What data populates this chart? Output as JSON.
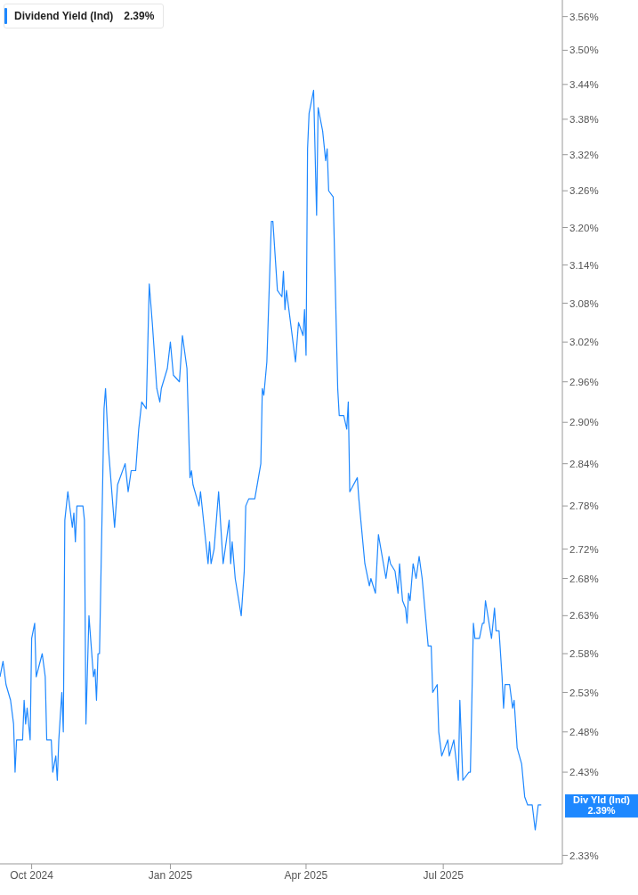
{
  "chart_data": {
    "type": "line",
    "x": [
      "2024-09-10",
      "2024-09-12",
      "2024-09-14",
      "2024-09-17",
      "2024-09-19",
      "2024-09-20",
      "2024-09-21",
      "2024-09-24",
      "2024-09-25",
      "2024-09-26",
      "2024-09-27",
      "2024-09-28",
      "2024-09-30",
      "2024-10-01",
      "2024-10-03",
      "2024-10-04",
      "2024-10-08",
      "2024-10-10",
      "2024-10-11",
      "2024-10-14",
      "2024-10-15",
      "2024-10-17",
      "2024-10-18",
      "2024-10-19",
      "2024-10-21",
      "2024-10-22",
      "2024-10-23",
      "2024-10-25",
      "2024-10-28",
      "2024-10-29",
      "2024-10-30",
      "2024-10-31",
      "2024-11-04",
      "2024-11-05",
      "2024-11-06",
      "2024-11-08",
      "2024-11-11",
      "2024-11-12",
      "2024-11-13",
      "2024-11-14",
      "2024-11-15",
      "2024-11-18",
      "2024-11-19",
      "2024-11-21",
      "2024-11-25",
      "2024-11-27",
      "2024-12-02",
      "2024-12-04",
      "2024-12-06",
      "2024-12-09",
      "2024-12-11",
      "2024-12-13",
      "2024-12-16",
      "2024-12-18",
      "2024-12-20",
      "2024-12-23",
      "2024-12-25",
      "2024-12-26",
      "2024-12-30",
      "2025-01-01",
      "2025-01-03",
      "2025-01-07",
      "2025-01-09",
      "2025-01-12",
      "2025-01-14",
      "2025-01-15",
      "2025-01-16",
      "2025-01-20",
      "2025-01-21",
      "2025-01-26",
      "2025-01-27",
      "2025-01-28",
      "2025-01-30",
      "2025-02-02",
      "2025-02-05",
      "2025-02-09",
      "2025-02-10",
      "2025-02-11",
      "2025-02-13",
      "2025-02-17",
      "2025-02-19",
      "2025-02-20",
      "2025-02-22",
      "2025-02-26",
      "2025-03-02",
      "2025-03-03",
      "2025-03-04",
      "2025-03-06",
      "2025-03-09",
      "2025-03-10",
      "2025-03-13",
      "2025-03-16",
      "2025-03-17",
      "2025-03-18",
      "2025-03-19",
      "2025-03-25",
      "2025-03-27",
      "2025-03-30",
      "2025-03-31",
      "2025-04-01",
      "2025-04-02",
      "2025-04-03",
      "2025-04-06",
      "2025-04-08",
      "2025-04-09",
      "2025-04-12",
      "2025-04-14",
      "2025-04-15",
      "2025-04-16",
      "2025-04-19",
      "2025-04-22",
      "2025-04-23",
      "2025-04-26",
      "2025-04-28",
      "2025-04-29",
      "2025-04-30",
      "2025-05-05",
      "2025-05-06",
      "2025-05-10",
      "2025-05-13",
      "2025-05-14",
      "2025-05-17",
      "2025-05-19",
      "2025-05-24",
      "2025-05-26",
      "2025-05-27",
      "2025-05-30",
      "2025-06-01",
      "2025-06-02",
      "2025-06-04",
      "2025-06-06",
      "2025-06-07",
      "2025-06-08",
      "2025-06-09",
      "2025-06-11",
      "2025-06-13",
      "2025-06-15",
      "2025-06-17",
      "2025-06-21",
      "2025-06-23",
      "2025-06-24",
      "2025-06-27",
      "2025-06-28",
      "2025-06-30",
      "2025-07-04",
      "2025-07-05",
      "2025-07-08",
      "2025-07-11",
      "2025-07-12",
      "2025-07-14",
      "2025-07-18",
      "2025-07-19",
      "2025-07-21",
      "2025-07-22",
      "2025-07-25",
      "2025-07-27",
      "2025-07-28",
      "2025-07-29",
      "2025-08-02",
      "2025-08-04",
      "2025-08-05",
      "2025-08-07",
      "2025-08-09",
      "2025-08-10",
      "2025-08-11",
      "2025-08-14",
      "2025-08-16",
      "2025-08-17",
      "2025-08-19",
      "2025-08-22",
      "2025-08-24",
      "2025-08-26",
      "2025-08-29",
      "2025-08-31",
      "2025-09-02",
      "2025-09-04"
    ],
    "series": [
      {
        "name": "Dividend Yield (Ind)",
        "color": "#1e88ff",
        "values": [
          2.55,
          2.57,
          2.54,
          2.52,
          2.49,
          2.43,
          2.47,
          2.47,
          2.47,
          2.52,
          2.49,
          2.51,
          2.47,
          2.6,
          2.62,
          2.55,
          2.58,
          2.55,
          2.47,
          2.47,
          2.43,
          2.45,
          2.42,
          2.47,
          2.53,
          2.48,
          2.76,
          2.8,
          2.75,
          2.77,
          2.73,
          2.78,
          2.78,
          2.76,
          2.49,
          2.63,
          2.55,
          2.56,
          2.52,
          2.58,
          2.58,
          2.92,
          2.95,
          2.86,
          2.75,
          2.81,
          2.84,
          2.8,
          2.83,
          2.83,
          2.89,
          2.93,
          2.92,
          3.11,
          3.05,
          2.95,
          2.93,
          2.95,
          2.98,
          3.02,
          2.97,
          2.96,
          3.03,
          2.98,
          2.82,
          2.83,
          2.81,
          2.78,
          2.8,
          2.7,
          2.73,
          2.7,
          2.72,
          2.8,
          2.7,
          2.76,
          2.7,
          2.73,
          2.68,
          2.63,
          2.69,
          2.78,
          2.79,
          2.79,
          2.84,
          2.95,
          2.94,
          2.99,
          3.21,
          3.21,
          3.1,
          3.09,
          3.13,
          3.07,
          3.1,
          2.99,
          3.05,
          3.03,
          3.07,
          3.0,
          3.33,
          3.39,
          3.43,
          3.22,
          3.4,
          3.36,
          3.31,
          3.33,
          3.26,
          3.25,
          2.95,
          2.91,
          2.91,
          2.89,
          2.93,
          2.8,
          2.82,
          2.79,
          2.7,
          2.67,
          2.68,
          2.66,
          2.74,
          2.68,
          2.71,
          2.7,
          2.69,
          2.66,
          2.7,
          2.65,
          2.64,
          2.62,
          2.66,
          2.65,
          2.7,
          2.68,
          2.71,
          2.68,
          2.59,
          2.59,
          2.53,
          2.54,
          2.48,
          2.45,
          2.47,
          2.45,
          2.47,
          2.42,
          2.52,
          2.42,
          2.43,
          2.43,
          2.62,
          2.6,
          2.6,
          2.62,
          2.62,
          2.65,
          2.6,
          2.64,
          2.61,
          2.61,
          2.55,
          2.51,
          2.54,
          2.54,
          2.51,
          2.52,
          2.46,
          2.44,
          2.4,
          2.39,
          2.39,
          2.36,
          2.39,
          2.39
        ]
      }
    ],
    "xlim": [
      "2024-09-10",
      "2025-09-18"
    ],
    "xticks": [
      {
        "value": "2024-10-01",
        "label": "Oct 2024"
      },
      {
        "value": "2025-01-01",
        "label": "Jan 2025"
      },
      {
        "value": "2025-04-01",
        "label": "Apr 2025"
      },
      {
        "value": "2025-07-01",
        "label": "Jul 2025"
      }
    ],
    "ylim": [
      2.32,
      3.59
    ],
    "yticks": [
      {
        "value": 2.33,
        "label": "2.33%"
      },
      {
        "value": 2.43,
        "label": "2.43%"
      },
      {
        "value": 2.48,
        "label": "2.48%"
      },
      {
        "value": 2.53,
        "label": "2.53%"
      },
      {
        "value": 2.58,
        "label": "2.58%"
      },
      {
        "value": 2.63,
        "label": "2.63%"
      },
      {
        "value": 2.68,
        "label": "2.68%"
      },
      {
        "value": 2.72,
        "label": "2.72%"
      },
      {
        "value": 2.78,
        "label": "2.78%"
      },
      {
        "value": 2.84,
        "label": "2.84%"
      },
      {
        "value": 2.9,
        "label": "2.90%"
      },
      {
        "value": 2.96,
        "label": "2.96%"
      },
      {
        "value": 3.02,
        "label": "3.02%"
      },
      {
        "value": 3.08,
        "label": "3.08%"
      },
      {
        "value": 3.14,
        "label": "3.14%"
      },
      {
        "value": 3.2,
        "label": "3.20%"
      },
      {
        "value": 3.26,
        "label": "3.26%"
      },
      {
        "value": 3.32,
        "label": "3.32%"
      },
      {
        "value": 3.38,
        "label": "3.38%"
      },
      {
        "value": 3.44,
        "label": "3.44%"
      },
      {
        "value": 3.5,
        "label": "3.50%"
      },
      {
        "value": 3.56,
        "label": "3.56%"
      }
    ],
    "log": "y",
    "grid": false,
    "legend": "top left",
    "marker": "none",
    "line_style": "solid",
    "annotations": [
      "2.39%",
      "Div Yld (Ind)\n2.39%"
    ]
  }
}
